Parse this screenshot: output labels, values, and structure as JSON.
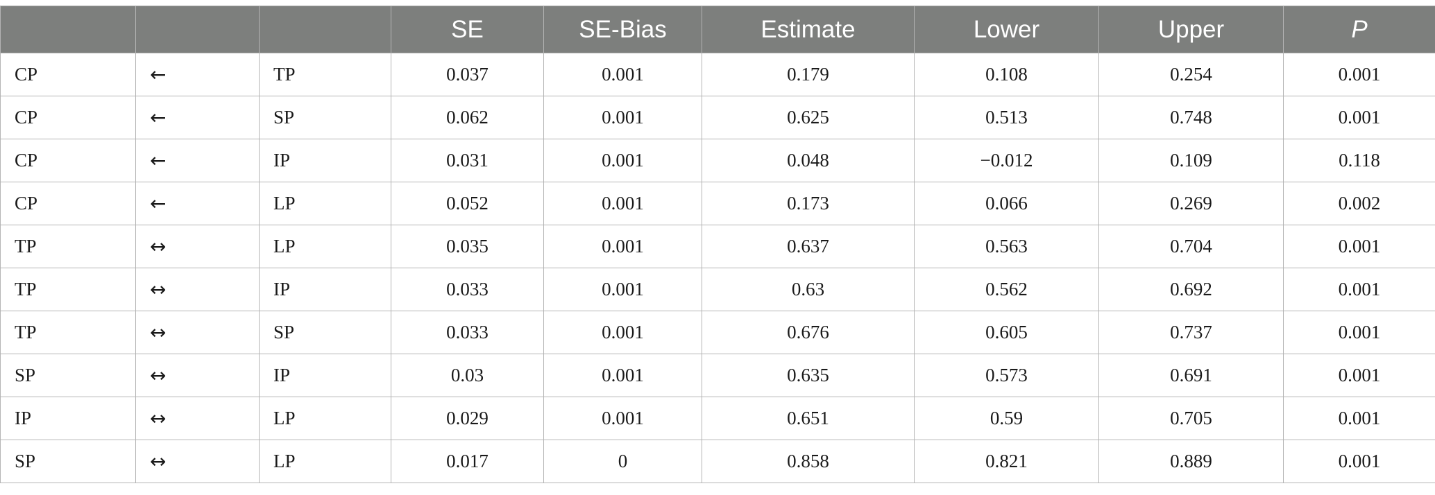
{
  "table": {
    "headers": {
      "from": "",
      "relation": "",
      "to": "",
      "se": "SE",
      "se_bias": "SE-Bias",
      "estimate": "Estimate",
      "lower": "Lower",
      "upper": "Upper",
      "p": "P"
    },
    "rows": [
      {
        "from": "CP",
        "relation": "←",
        "to": "TP",
        "se": "0.037",
        "se_bias": "0.001",
        "estimate": "0.179",
        "lower": "0.108",
        "upper": "0.254",
        "p": "0.001"
      },
      {
        "from": "CP",
        "relation": "←",
        "to": "SP",
        "se": "0.062",
        "se_bias": "0.001",
        "estimate": "0.625",
        "lower": "0.513",
        "upper": "0.748",
        "p": "0.001"
      },
      {
        "from": "CP",
        "relation": "←",
        "to": "IP",
        "se": "0.031",
        "se_bias": "0.001",
        "estimate": "0.048",
        "lower": "−0.012",
        "upper": "0.109",
        "p": "0.118"
      },
      {
        "from": "CP",
        "relation": "←",
        "to": "LP",
        "se": "0.052",
        "se_bias": "0.001",
        "estimate": "0.173",
        "lower": "0.066",
        "upper": "0.269",
        "p": "0.002"
      },
      {
        "from": "TP",
        "relation": "↔",
        "to": "LP",
        "se": "0.035",
        "se_bias": "0.001",
        "estimate": "0.637",
        "lower": "0.563",
        "upper": "0.704",
        "p": "0.001"
      },
      {
        "from": "TP",
        "relation": "↔",
        "to": "IP",
        "se": "0.033",
        "se_bias": "0.001",
        "estimate": "0.63",
        "lower": "0.562",
        "upper": "0.692",
        "p": "0.001"
      },
      {
        "from": "TP",
        "relation": "↔",
        "to": "SP",
        "se": "0.033",
        "se_bias": "0.001",
        "estimate": "0.676",
        "lower": "0.605",
        "upper": "0.737",
        "p": "0.001"
      },
      {
        "from": "SP",
        "relation": "↔",
        "to": "IP",
        "se": "0.03",
        "se_bias": "0.001",
        "estimate": "0.635",
        "lower": "0.573",
        "upper": "0.691",
        "p": "0.001"
      },
      {
        "from": "IP",
        "relation": "↔",
        "to": "LP",
        "se": "0.029",
        "se_bias": "0.001",
        "estimate": "0.651",
        "lower": "0.59",
        "upper": "0.705",
        "p": "0.001"
      },
      {
        "from": "SP",
        "relation": "↔",
        "to": "LP",
        "se": "0.017",
        "se_bias": "0",
        "estimate": "0.858",
        "lower": "0.821",
        "upper": "0.889",
        "p": "0.001"
      }
    ]
  },
  "colors": {
    "header_background": "#7d7f7d",
    "header_text": "#ffffff",
    "grid_lines": "#b4b4b4",
    "body_text": "#1a1a1a"
  }
}
